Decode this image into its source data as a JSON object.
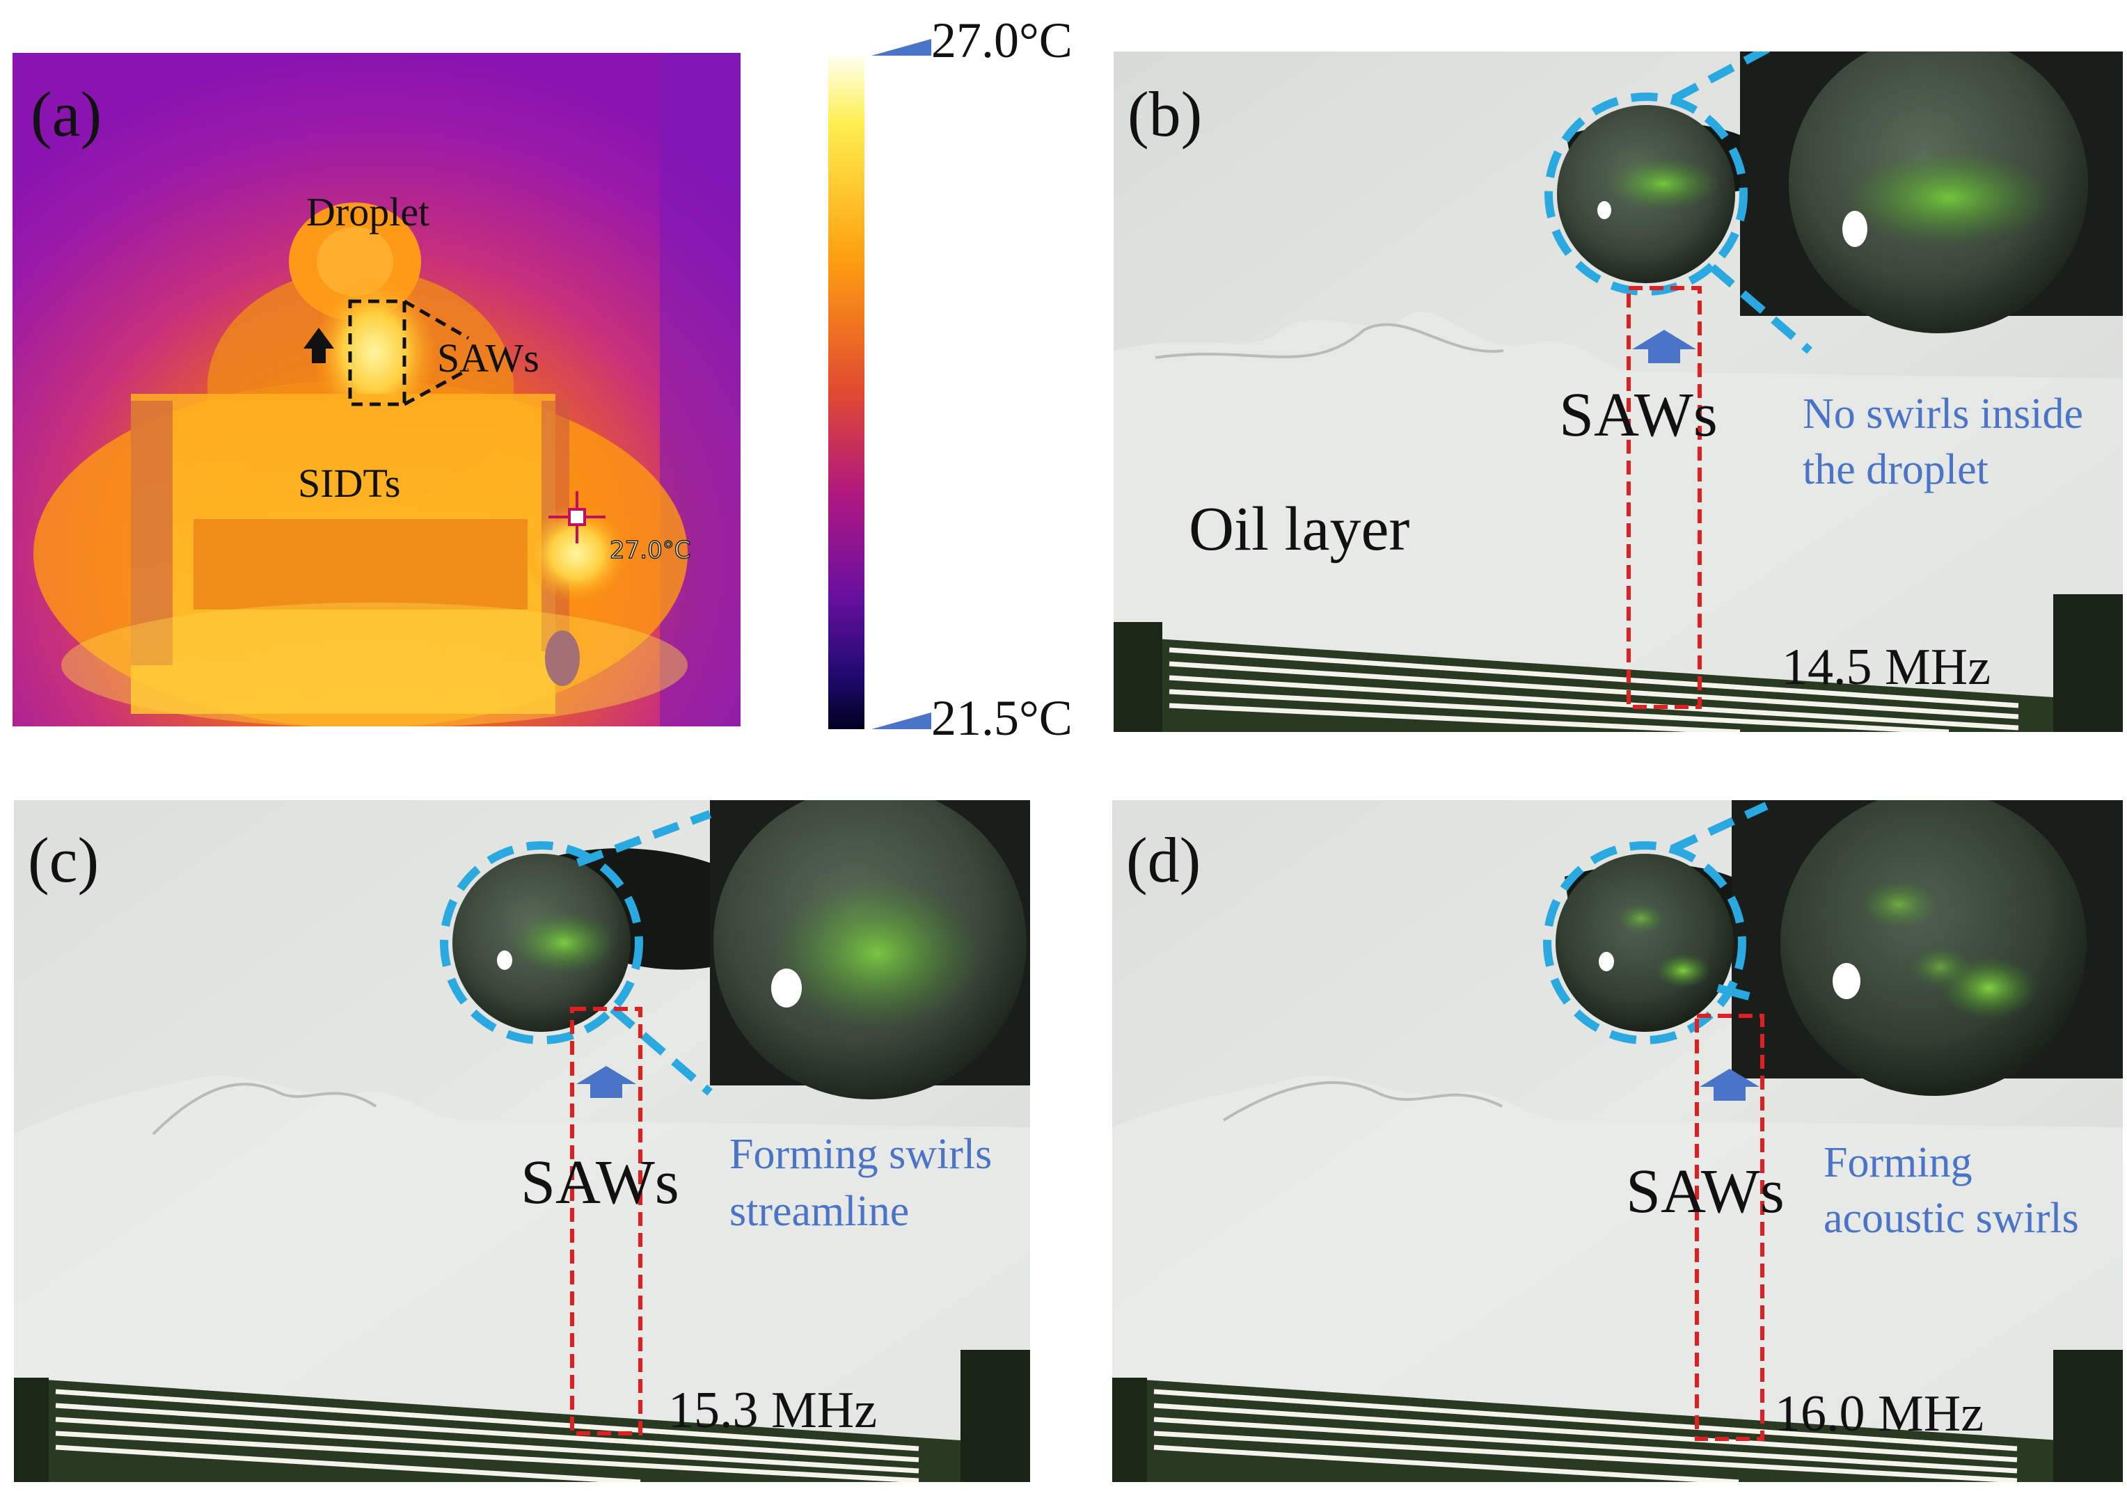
{
  "panel_a": {
    "letter": "(a)",
    "droplet_label": "Droplet",
    "saws_label": "SAWs",
    "sidts_label": "SIDTs",
    "temp_readout": "27.0°C"
  },
  "colorbar": {
    "max_label": "27.0°C",
    "min_label": "21.5°C"
  },
  "panel_b": {
    "letter": "(b)",
    "saws_label": "SAWs",
    "annotation_line1": "No swirls inside",
    "annotation_line2": "the droplet",
    "oil_label": "Oil layer",
    "frequency": "14.5 MHz"
  },
  "panel_c": {
    "letter": "(c)",
    "saws_label": "SAWs",
    "annotation_line1": "Forming swirls",
    "annotation_line2": "streamline",
    "frequency": "15.3 MHz"
  },
  "panel_d": {
    "letter": "(d)",
    "saws_label": "SAWs",
    "annotation_line1": "Forming",
    "annotation_line2": "acoustic swirls",
    "frequency": "16.0 MHz"
  },
  "colors": {
    "dashed_blue": "#2aa9e0",
    "dashed_red": "#e02020",
    "arrow_blue": "#4a74c7",
    "annotation_blue": "#4a74c7"
  }
}
